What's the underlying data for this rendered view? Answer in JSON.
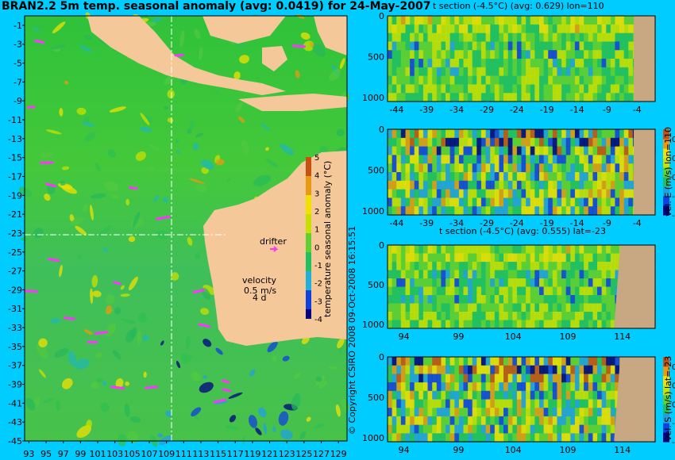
{
  "title": "BRAN2.2 5m temp. seasonal anomaly (avg: 0.0419) for 24-May-2007",
  "colors": {
    "background": "#00ccff",
    "land": "#f5c89a",
    "land_section": "#c8a882",
    "drifter": "#ff33ff",
    "crosshair": "#ffffff"
  },
  "chart_data": [
    {
      "type": "heatmap",
      "name": "map",
      "title": "BRAN2.2 5m temp. seasonal anomaly (avg: 0.0419) for 24-May-2007",
      "x_ticks": [
        "93",
        "95",
        "97",
        "99",
        "101",
        "103",
        "105",
        "107",
        "109",
        "111",
        "113",
        "115",
        "117",
        "119",
        "121",
        "123",
        "125",
        "127",
        "129"
      ],
      "y_ticks": [
        "-1",
        "-3",
        "-5",
        "-7",
        "-9",
        "-11",
        "-13",
        "-15",
        "-17",
        "-19",
        "-21",
        "-23",
        "-25",
        "-27",
        "-29",
        "-31",
        "-33",
        "-35",
        "-37",
        "-39",
        "-41",
        "-43",
        "-45"
      ],
      "xlim": [
        92.5,
        130
      ],
      "ylim": [
        -45,
        0
      ],
      "crosshair": {
        "lon": 110,
        "lat": -23
      },
      "annotations": {
        "drifter": "drifter",
        "velocity": "velocity",
        "velocity_value": "0.5 m/s",
        "velocity_extra": "4 d"
      },
      "colorbar": {
        "label": "temperature seasonal anomaly (°C)",
        "ticks": [
          "5",
          "4",
          "3",
          "2",
          "1",
          "0",
          "-1",
          "-2",
          "-3",
          "-4"
        ],
        "range": [
          -4,
          5
        ]
      },
      "credit": "© Copyright CSIRO 2008   09-Oct-2008 16:15:51"
    },
    {
      "type": "heatmap",
      "name": "t-section-lon110",
      "title": "t section (-4.5°C) (avg: 0.629) lon=110",
      "x_ticks": [
        "-44",
        "-39",
        "-34",
        "-29",
        "-24",
        "-19",
        "-14",
        "-9",
        "-4"
      ],
      "y_ticks": [
        "0",
        "500",
        "1000"
      ],
      "xlim": [
        -45.5,
        -1
      ],
      "ylim": [
        1050,
        0
      ]
    },
    {
      "type": "heatmap",
      "name": "vel-e-lon110",
      "x_ticks": [
        "-44",
        "-39",
        "-34",
        "-29",
        "-24",
        "-19",
        "-14",
        "-9",
        "-4"
      ],
      "y_ticks": [
        "0",
        "500",
        "1000"
      ],
      "colorbar": {
        "label": "vel. E (m/s) lon=110",
        "ticks": [
          "0.4",
          "0.2",
          "0",
          "-0.2",
          "-0.4"
        ],
        "range": [
          -0.4,
          0.5
        ]
      }
    },
    {
      "type": "heatmap",
      "name": "t-section-lat23",
      "title": "t section (-4.5°C) (avg: 0.555) lat=-23",
      "x_ticks": [
        "94",
        "99",
        "104",
        "109",
        "114"
      ],
      "y_ticks": [
        "0",
        "500",
        "1000"
      ],
      "xlim": [
        92.5,
        117
      ],
      "ylim": [
        1050,
        0
      ]
    },
    {
      "type": "heatmap",
      "name": "vel-s-lat23",
      "x_ticks": [
        "94",
        "99",
        "104",
        "109",
        "114"
      ],
      "y_ticks": [
        "0",
        "500",
        "1000"
      ],
      "colorbar": {
        "label": "vel. S (m/s) lat=-23",
        "ticks": [
          "0.4",
          "0.2",
          "0",
          "-0.2",
          "-0.4"
        ],
        "range": [
          -0.4,
          0.5
        ]
      }
    }
  ]
}
